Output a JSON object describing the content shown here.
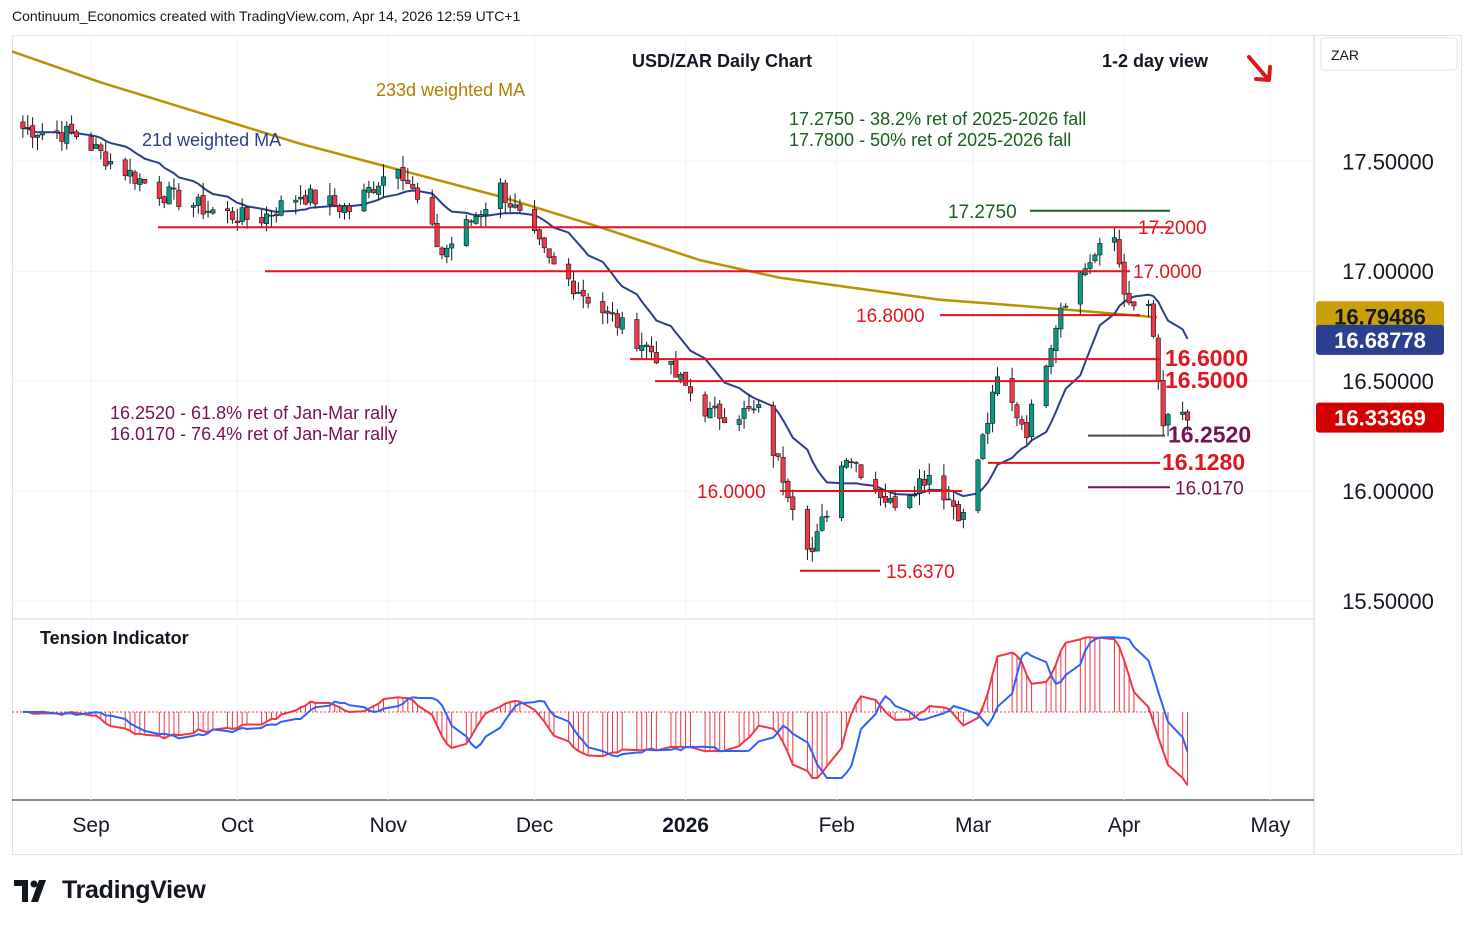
{
  "header": {
    "attribution": "Continuum_Economics created with TradingView.com, Apr 14, 2026 12:59 UTC+1"
  },
  "footer": {
    "brand": "TradingView"
  },
  "colors": {
    "up": "#089981",
    "down": "#f23645",
    "level": "#e0151e",
    "ma21": "#2a3f8f",
    "ma233": "#b89200",
    "fib_green": "#1b5e20",
    "fib_purple": "#7a1152",
    "current_price_bg": "#d50000",
    "tension_fill": "#f23645",
    "tension_line": "#2962ff"
  },
  "chart_data": {
    "type": "candlestick",
    "symbol": "USD/ZAR",
    "title": "USD/ZAR Daily Chart",
    "view": "1-2 day view",
    "view_icon": "arrow-down-right-icon",
    "currency_label": "ZAR",
    "x_ticks": [
      "Sep",
      "Oct",
      "Nov",
      "Dec",
      "2026",
      "Feb",
      "Mar",
      "Apr",
      "May"
    ],
    "y_ticks": [
      "17.50000",
      "17.00000",
      "16.50000",
      "16.00000",
      "15.50000"
    ],
    "y_tick_values": [
      17.5,
      17.0,
      16.5,
      16.0,
      15.5
    ],
    "ylim": [
      15.37,
      18.0
    ],
    "grid": true,
    "price_badges": [
      {
        "label": "16.79486",
        "value": 16.79486,
        "bg": "#c9a00a",
        "fg": "#131722"
      },
      {
        "label": "16.68778",
        "value": 16.68778,
        "bg": "#2a3f8f",
        "fg": "#ffffff"
      },
      {
        "label": "16.33369",
        "value": 16.33369,
        "bg": "#d50000",
        "fg": "#ffffff"
      }
    ],
    "moving_averages": [
      {
        "name": "233d weighted MA",
        "color": "#b89200"
      },
      {
        "name": "21d weighted MA",
        "color": "#2a3f8f"
      }
    ],
    "levels": [
      {
        "label": "17.2000",
        "value": 17.2
      },
      {
        "label": "17.0000",
        "value": 17.0
      },
      {
        "label": "16.8000",
        "value": 16.8
      },
      {
        "label": "16.6000",
        "value": 16.6
      },
      {
        "label": "16.5000",
        "value": 16.5
      },
      {
        "label": "16.2520",
        "value": 16.252
      },
      {
        "label": "16.1280",
        "value": 16.128
      },
      {
        "label": "16.0170",
        "value": 16.017
      },
      {
        "label": "16.0000",
        "value": 16.0
      },
      {
        "label": "15.6370",
        "value": 15.637
      },
      {
        "label": "17.2750",
        "value": 17.275
      }
    ],
    "annotations_top": [
      "17.2750 - 38.2% ret of 2025-2026 fall",
      "17.7800 - 50% ret of 2025-2026 fall"
    ],
    "annotations_left": [
      "16.2520 - 61.8% ret of Jan-Mar rally",
      "16.0170 - 76.4% ret of Jan-Mar rally"
    ],
    "indicator": {
      "name": "Tension Indicator"
    },
    "anchors": [
      {
        "date": "2025-08-18",
        "close": 17.65
      },
      {
        "date": "2025-08-29",
        "close": 17.62
      },
      {
        "date": "2025-09-05",
        "close": 17.5
      },
      {
        "date": "2025-09-15",
        "close": 17.36
      },
      {
        "date": "2025-09-25",
        "close": 17.28
      },
      {
        "date": "2025-10-05",
        "close": 17.23
      },
      {
        "date": "2025-10-14",
        "close": 17.35
      },
      {
        "date": "2025-10-24",
        "close": 17.28
      },
      {
        "date": "2025-11-03",
        "close": 17.5
      },
      {
        "date": "2025-11-12",
        "close": 17.08
      },
      {
        "date": "2025-11-24",
        "close": 17.38
      },
      {
        "date": "2025-12-04",
        "close": 17.04
      },
      {
        "date": "2025-12-15",
        "close": 16.82
      },
      {
        "date": "2025-12-26",
        "close": 16.62
      },
      {
        "date": "2026-01-06",
        "close": 16.35
      },
      {
        "date": "2026-01-16",
        "close": 16.36
      },
      {
        "date": "2026-01-27",
        "close": 15.72
      },
      {
        "date": "2026-02-03",
        "close": 16.18
      },
      {
        "date": "2026-02-12",
        "close": 15.94
      },
      {
        "date": "2026-02-20",
        "close": 16.08
      },
      {
        "date": "2026-02-27",
        "close": 15.88
      },
      {
        "date": "2026-03-06",
        "close": 16.5
      },
      {
        "date": "2026-03-12",
        "close": 16.28
      },
      {
        "date": "2026-03-19",
        "close": 16.85
      },
      {
        "date": "2026-03-25",
        "close": 17.05
      },
      {
        "date": "2026-03-30",
        "close": 17.15
      },
      {
        "date": "2026-04-02",
        "close": 16.82
      },
      {
        "date": "2026-04-06",
        "close": 16.85
      },
      {
        "date": "2026-04-09",
        "close": 16.3
      },
      {
        "date": "2026-04-14",
        "close": 16.33
      }
    ]
  }
}
